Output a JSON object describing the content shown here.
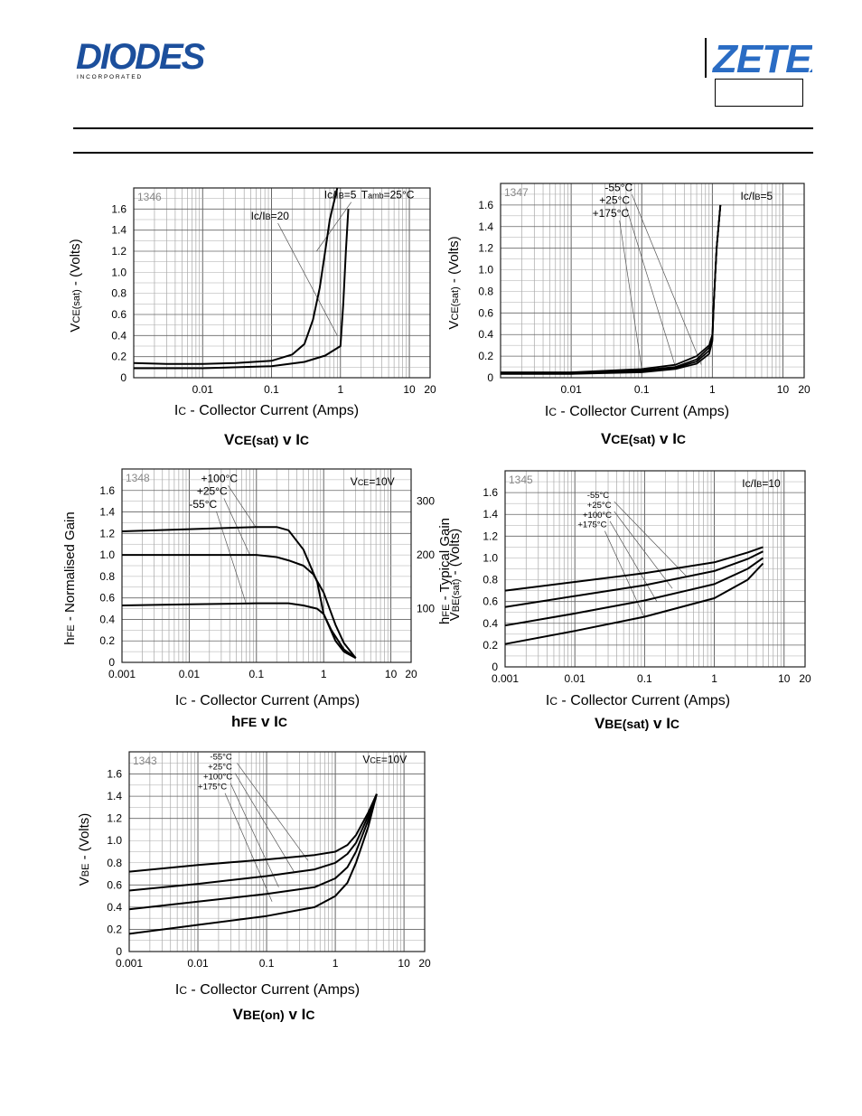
{
  "header": {
    "brand_left": "DIODES",
    "brand_left_sub": "I N C O R P O R A T E D",
    "brand_right": "ZETEX",
    "brand_color": "#1c4f9c"
  },
  "chart_data": [
    {
      "type": "line",
      "id": "vce-sat-1346",
      "code": "1346",
      "caption_main": "V",
      "caption_sub": "CE(sat)",
      "caption_tail": " v I",
      "caption_tail_sub": "C",
      "ylabel_main": "V",
      "ylabel_sub": "CE(sat)",
      "ylabel_tail": " - (Volts)",
      "xlabel_main": "I",
      "xlabel_sub": "C",
      "xlabel_tail": " - Collector Current (Amps)",
      "xscale": "log",
      "xlim": [
        0.001,
        20
      ],
      "ylim": [
        0,
        1.8
      ],
      "xticks": [
        "0.01",
        "0.1",
        "1",
        "10",
        "20"
      ],
      "xtick_values": [
        0.01,
        0.1,
        1,
        10,
        20
      ],
      "yticks": [
        "0",
        "0.2",
        "0.4",
        "0.6",
        "0.8",
        "1.0",
        "1.2",
        "1.4",
        "1.6"
      ],
      "ytick_values": [
        0,
        0.2,
        0.4,
        0.6,
        0.8,
        1.0,
        1.2,
        1.4,
        1.6
      ],
      "annotations": [
        {
          "text": "Ic/IB=5",
          "ax": 0.58,
          "ay": 1.7,
          "tx": 0.45,
          "ty": 1.2
        },
        {
          "text": "Ic/IB=20",
          "ax": 0.05,
          "ay": 1.5,
          "tx": 0.9,
          "ty": 0.4
        },
        {
          "text": "Tamb=25°C",
          "ax": 2.0,
          "ay": 1.7
        }
      ],
      "series": [
        {
          "name": "Ic/IB=5",
          "x": [
            0.001,
            0.003,
            0.01,
            0.03,
            0.1,
            0.2,
            0.3,
            0.4,
            0.5,
            0.6,
            0.7,
            0.9
          ],
          "y": [
            0.14,
            0.13,
            0.13,
            0.14,
            0.16,
            0.22,
            0.32,
            0.55,
            0.85,
            1.2,
            1.5,
            1.8
          ]
        },
        {
          "name": "Ic/IB=20",
          "x": [
            0.001,
            0.01,
            0.1,
            0.3,
            0.6,
            1.0,
            1.1,
            1.2,
            1.3
          ],
          "y": [
            0.09,
            0.09,
            0.11,
            0.15,
            0.21,
            0.3,
            0.7,
            1.2,
            1.6
          ]
        }
      ]
    },
    {
      "type": "line",
      "id": "vce-sat-1347",
      "code": "1347",
      "caption_main": "V",
      "caption_sub": "CE(sat)",
      "caption_tail": " v I",
      "caption_tail_sub": "C",
      "ylabel_main": "V",
      "ylabel_sub": "CE(sat)",
      "ylabel_tail": " - (Volts)",
      "xlabel_main": "I",
      "xlabel_sub": "C",
      "xlabel_tail": " - Collector Current (Amps)",
      "xscale": "log",
      "xlim": [
        0.001,
        20
      ],
      "ylim": [
        0,
        1.8
      ],
      "xticks": [
        "0.01",
        "0.1",
        "1",
        "10",
        "20"
      ],
      "xtick_values": [
        0.01,
        0.1,
        1,
        10,
        20
      ],
      "yticks": [
        "0",
        "0.2",
        "0.4",
        "0.6",
        "0.8",
        "1.0",
        "1.2",
        "1.4",
        "1.6"
      ],
      "ytick_values": [
        0,
        0.2,
        0.4,
        0.6,
        0.8,
        1.0,
        1.2,
        1.4,
        1.6
      ],
      "annotations": [
        {
          "text": "-55°C",
          "ax": 0.03,
          "ay": 1.73,
          "tx": 0.7,
          "ty": 0.12
        },
        {
          "text": "+25°C",
          "ax": 0.025,
          "ay": 1.61,
          "tx": 0.3,
          "ty": 0.1
        },
        {
          "text": "+175°C",
          "ax": 0.02,
          "ay": 1.49,
          "tx": 0.1,
          "ty": 0.08
        },
        {
          "text": "Ic/IB=5",
          "ax": 2.5,
          "ay": 1.65
        }
      ],
      "series": [
        {
          "name": "-55°C",
          "x": [
            0.001,
            0.01,
            0.1,
            0.3,
            0.6,
            0.9,
            1.0,
            1.05,
            1.15,
            1.3
          ],
          "y": [
            0.05,
            0.05,
            0.08,
            0.12,
            0.2,
            0.3,
            0.4,
            0.7,
            1.2,
            1.6
          ]
        },
        {
          "name": "+25°C",
          "x": [
            0.001,
            0.01,
            0.1,
            0.3,
            0.6,
            0.9,
            1.0,
            1.05,
            1.15,
            1.3
          ],
          "y": [
            0.04,
            0.045,
            0.07,
            0.1,
            0.17,
            0.28,
            0.38,
            0.7,
            1.2,
            1.6
          ]
        },
        {
          "name": "+100°C",
          "x": [
            0.001,
            0.01,
            0.1,
            0.3,
            0.6,
            0.9,
            1.0,
            1.05,
            1.15,
            1.3
          ],
          "y": [
            0.04,
            0.04,
            0.06,
            0.09,
            0.15,
            0.25,
            0.36,
            0.7,
            1.2,
            1.6
          ]
        },
        {
          "name": "+175°C",
          "x": [
            0.001,
            0.01,
            0.1,
            0.3,
            0.6,
            0.9,
            1.0,
            1.05,
            1.15,
            1.3
          ],
          "y": [
            0.035,
            0.035,
            0.05,
            0.08,
            0.13,
            0.22,
            0.34,
            0.7,
            1.2,
            1.6
          ]
        }
      ]
    },
    {
      "type": "line",
      "id": "hfe-1348",
      "code": "1348",
      "caption_main": "h",
      "caption_sub": "FE",
      "caption_tail": " v I",
      "caption_tail_sub": "C",
      "ylabel_main": "h",
      "ylabel_sub": "FE",
      "ylabel_tail": " - Normalised Gain",
      "y2label_main": "h",
      "y2label_sub": "FE",
      "y2label_tail": " - Typical Gain",
      "xlabel_main": "I",
      "xlabel_sub": "C",
      "xlabel_tail": " - Collector Current (Amps)",
      "xscale": "log",
      "xlim": [
        0.001,
        20
      ],
      "ylim": [
        0,
        1.8
      ],
      "xticks": [
        "0.001",
        "0.01",
        "0.1",
        "1",
        "10",
        "20"
      ],
      "xtick_values": [
        0.001,
        0.01,
        0.1,
        1,
        10,
        20
      ],
      "yticks": [
        "0",
        "0.2",
        "0.4",
        "0.6",
        "0.8",
        "1.0",
        "1.2",
        "1.4",
        "1.6"
      ],
      "ytick_values": [
        0,
        0.2,
        0.4,
        0.6,
        0.8,
        1.0,
        1.2,
        1.4,
        1.6
      ],
      "y2ticks": [
        "100",
        "200",
        "300"
      ],
      "y2tick_values": [
        0.5,
        1.0,
        1.5
      ],
      "annotations": [
        {
          "text": "+100°C",
          "ax": 0.015,
          "ay": 1.68,
          "tx": 0.1,
          "ty": 1.25
        },
        {
          "text": "+25°C",
          "ax": 0.013,
          "ay": 1.56,
          "tx": 0.08,
          "ty": 1.0
        },
        {
          "text": "-55°C",
          "ax": 0.01,
          "ay": 1.44,
          "tx": 0.07,
          "ty": 0.55
        },
        {
          "text": "VCE=10V",
          "ax": 2.5,
          "ay": 1.65
        }
      ],
      "series": [
        {
          "name": "+100°C",
          "x": [
            0.001,
            0.01,
            0.1,
            0.2,
            0.3,
            0.5,
            0.8,
            1.0,
            1.5,
            2.0,
            3.0
          ],
          "y": [
            1.22,
            1.24,
            1.26,
            1.26,
            1.23,
            1.05,
            0.75,
            0.45,
            0.2,
            0.1,
            0.04
          ]
        },
        {
          "name": "+25°C",
          "x": [
            0.001,
            0.01,
            0.1,
            0.2,
            0.3,
            0.5,
            0.7,
            1.0,
            1.5,
            2.0,
            3.0
          ],
          "y": [
            1.0,
            1.0,
            1.0,
            0.98,
            0.95,
            0.9,
            0.82,
            0.65,
            0.35,
            0.18,
            0.04
          ]
        },
        {
          "name": "-55°C",
          "x": [
            0.001,
            0.01,
            0.1,
            0.3,
            0.5,
            0.8,
            1.0,
            1.3,
            2.0,
            3.0
          ],
          "y": [
            0.53,
            0.54,
            0.55,
            0.55,
            0.53,
            0.5,
            0.45,
            0.3,
            0.12,
            0.04
          ]
        }
      ]
    },
    {
      "type": "line",
      "id": "vbe-sat-1345",
      "code": "1345",
      "caption_main": "V",
      "caption_sub": "BE(sat)",
      "caption_tail": " v I",
      "caption_tail_sub": "C",
      "ylabel_main": "V",
      "ylabel_sub": "BE(sat)",
      "ylabel_tail": " - (Volts)",
      "xlabel_main": "I",
      "xlabel_sub": "C",
      "xlabel_tail": " - Collector Current (Amps)",
      "xscale": "log",
      "xlim": [
        0.001,
        20
      ],
      "ylim": [
        0,
        1.8
      ],
      "xticks": [
        "0.001",
        "0.01",
        "0.1",
        "1",
        "10",
        "20"
      ],
      "xtick_values": [
        0.001,
        0.01,
        0.1,
        1,
        10,
        20
      ],
      "yticks": [
        "0",
        "0.2",
        "0.4",
        "0.6",
        "0.8",
        "1.0",
        "1.2",
        "1.4",
        "1.6"
      ],
      "ytick_values": [
        0,
        0.2,
        0.4,
        0.6,
        0.8,
        1.0,
        1.2,
        1.4,
        1.6
      ],
      "annotations": [
        {
          "text": "-55°C",
          "ax": 0.015,
          "ay": 1.55,
          "tx": 0.4,
          "ty": 0.83
        },
        {
          "text": "+25°C",
          "ax": 0.015,
          "ay": 1.46,
          "tx": 0.25,
          "ty": 0.72
        },
        {
          "text": "+100°C",
          "ax": 0.013,
          "ay": 1.37,
          "tx": 0.15,
          "ty": 0.6
        },
        {
          "text": "+175°C",
          "ax": 0.011,
          "ay": 1.28,
          "tx": 0.1,
          "ty": 0.45
        },
        {
          "text": "Ic/IB=10",
          "ax": 2.5,
          "ay": 1.65
        }
      ],
      "series": [
        {
          "name": "-55°C",
          "x": [
            0.001,
            0.01,
            0.1,
            1,
            3,
            5
          ],
          "y": [
            0.7,
            0.78,
            0.86,
            0.96,
            1.05,
            1.1
          ]
        },
        {
          "name": "+25°C",
          "x": [
            0.001,
            0.01,
            0.1,
            1,
            3,
            5
          ],
          "y": [
            0.55,
            0.65,
            0.75,
            0.88,
            0.99,
            1.06
          ]
        },
        {
          "name": "+100°C",
          "x": [
            0.001,
            0.01,
            0.1,
            1,
            3,
            5
          ],
          "y": [
            0.38,
            0.49,
            0.61,
            0.76,
            0.9,
            1.0
          ]
        },
        {
          "name": "+175°C",
          "x": [
            0.001,
            0.01,
            0.1,
            1,
            3,
            5
          ],
          "y": [
            0.21,
            0.33,
            0.46,
            0.63,
            0.8,
            0.95
          ]
        }
      ]
    },
    {
      "type": "line",
      "id": "vbe-on-1343",
      "code": "1343",
      "caption_main": "V",
      "caption_sub": "BE(on)",
      "caption_tail": " v I",
      "caption_tail_sub": "C",
      "ylabel_main": "V",
      "ylabel_sub": "BE",
      "ylabel_tail": " - (Volts)",
      "xlabel_main": "I",
      "xlabel_sub": "C",
      "xlabel_tail": " - Collector Current (Amps)",
      "xscale": "log",
      "xlim": [
        0.001,
        20
      ],
      "ylim": [
        0,
        1.8
      ],
      "xticks": [
        "0.001",
        "0.01",
        "0.1",
        "1",
        "10",
        "20"
      ],
      "xtick_values": [
        0.001,
        0.01,
        0.1,
        1,
        10,
        20
      ],
      "yticks": [
        "0",
        "0.2",
        "0.4",
        "0.6",
        "0.8",
        "1.0",
        "1.2",
        "1.4",
        "1.6"
      ],
      "ytick_values": [
        0,
        0.2,
        0.4,
        0.6,
        0.8,
        1.0,
        1.2,
        1.4,
        1.6
      ],
      "annotations": [
        {
          "text": "-55°C",
          "ax": 0.015,
          "ay": 1.73,
          "tx": 0.4,
          "ty": 0.82
        },
        {
          "text": "+25°C",
          "ax": 0.014,
          "ay": 1.64,
          "tx": 0.25,
          "ty": 0.72
        },
        {
          "text": "+100°C",
          "ax": 0.012,
          "ay": 1.55,
          "tx": 0.15,
          "ty": 0.58
        },
        {
          "text": "+175°C",
          "ax": 0.01,
          "ay": 1.46,
          "tx": 0.12,
          "ty": 0.45
        },
        {
          "text": "VCE=10V",
          "ax": 2.5,
          "ay": 1.7
        }
      ],
      "series": [
        {
          "name": "-55°C",
          "x": [
            0.001,
            0.01,
            0.1,
            0.5,
            1.0,
            1.5,
            2.0,
            3.0,
            4.0
          ],
          "y": [
            0.72,
            0.78,
            0.83,
            0.87,
            0.9,
            0.96,
            1.05,
            1.25,
            1.42
          ]
        },
        {
          "name": "+25°C",
          "x": [
            0.001,
            0.01,
            0.1,
            0.5,
            1.0,
            1.5,
            2.0,
            3.0,
            4.0
          ],
          "y": [
            0.55,
            0.61,
            0.68,
            0.74,
            0.8,
            0.88,
            0.98,
            1.22,
            1.42
          ]
        },
        {
          "name": "+100°C",
          "x": [
            0.001,
            0.01,
            0.1,
            0.5,
            1.0,
            1.5,
            2.0,
            3.0,
            4.0
          ],
          "y": [
            0.38,
            0.45,
            0.52,
            0.58,
            0.66,
            0.76,
            0.9,
            1.18,
            1.42
          ]
        },
        {
          "name": "+175°C",
          "x": [
            0.001,
            0.01,
            0.1,
            0.5,
            1.0,
            1.5,
            2.0,
            3.0,
            4.0
          ],
          "y": [
            0.16,
            0.24,
            0.32,
            0.4,
            0.5,
            0.62,
            0.8,
            1.12,
            1.42
          ]
        }
      ]
    }
  ]
}
